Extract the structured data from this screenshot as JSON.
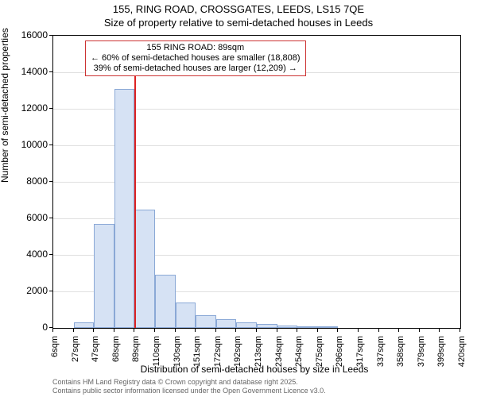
{
  "chart": {
    "type": "histogram",
    "title_main": "155, RING ROAD, CROSSGATES, LEEDS, LS15 7QE",
    "title_sub": "Size of property relative to semi-detached houses in Leeds",
    "title_fontsize": 13,
    "x_axis_title": "Distribution of semi-detached houses by size in Leeds",
    "y_axis_title": "Number of semi-detached properties",
    "axis_title_fontsize": 12,
    "background_color": "#ffffff",
    "grid_color": "#e0e0e0",
    "border_color": "#000000",
    "bar_fill": "#d6e2f4",
    "bar_border": "#8aa8d6",
    "marker_color": "#d22",
    "annotation_border": "#cc3333",
    "ylim": [
      0,
      16000
    ],
    "ytick_step": 2000,
    "yticks": [
      0,
      2000,
      4000,
      6000,
      8000,
      10000,
      12000,
      14000,
      16000
    ],
    "x_min": 6,
    "x_max": 420,
    "x_bin_width": 20.7,
    "x_tick_labels": [
      "6sqm",
      "27sqm",
      "47sqm",
      "68sqm",
      "89sqm",
      "110sqm",
      "130sqm",
      "151sqm",
      "172sqm",
      "192sqm",
      "213sqm",
      "234sqm",
      "254sqm",
      "275sqm",
      "296sqm",
      "317sqm",
      "337sqm",
      "358sqm",
      "379sqm",
      "399sqm",
      "420sqm"
    ],
    "bar_values": [
      0,
      300,
      5700,
      13100,
      6500,
      2900,
      1400,
      700,
      500,
      300,
      200,
      150,
      100,
      50,
      0,
      0,
      0,
      0,
      0,
      0
    ],
    "marker_x": 89,
    "annotation": {
      "line1": "155 RING ROAD: 89sqm",
      "line2": "← 60% of semi-detached houses are smaller (18,808)",
      "line3": "39% of semi-detached houses are larger (12,209) →",
      "fontsize": 11
    },
    "footer_line1": "Contains HM Land Registry data © Crown copyright and database right 2025.",
    "footer_line2": "Contains public sector information licensed under the Open Government Licence v3.0.",
    "footer_color": "#666666",
    "footer_fontsize": 9
  }
}
